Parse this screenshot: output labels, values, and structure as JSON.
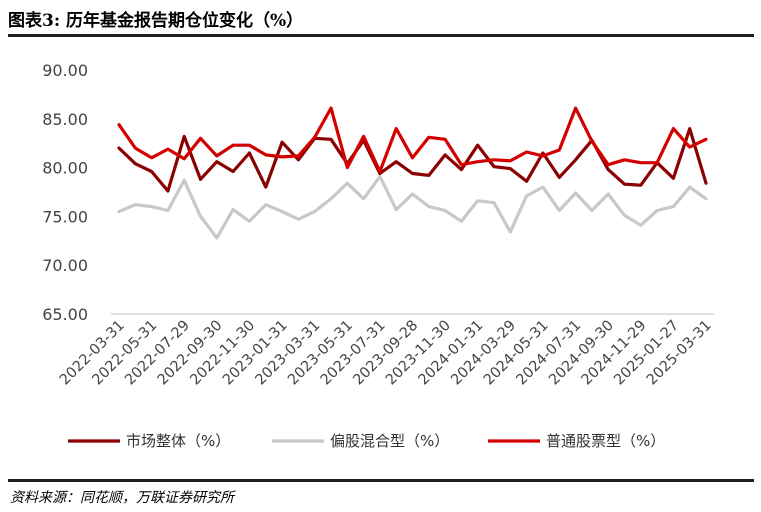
{
  "header": {
    "title": "图表3:  历年基金报告期仓位变化（%）"
  },
  "footer": {
    "source": "资料来源：同花顺，万联证券研究所"
  },
  "chart_data": {
    "type": "line",
    "title": "",
    "xlabel": "",
    "ylabel": "",
    "ylim": [
      65,
      90
    ],
    "yticks": [
      "90.00",
      "85.00",
      "80.00",
      "75.00",
      "70.00",
      "65.00"
    ],
    "ytick_values": [
      90,
      85,
      80,
      75,
      70,
      65
    ],
    "grid": false,
    "legend_position": "bottom",
    "x": [
      "2022-03-31",
      "2022-04-30",
      "2022-05-31",
      "2022-06-30",
      "2022-07-29",
      "2022-08-31",
      "2022-09-30",
      "2022-10-31",
      "2022-11-30",
      "2022-12-30",
      "2023-01-31",
      "2023-02-28",
      "2023-03-31",
      "2023-04-28",
      "2023-05-31",
      "2023-06-30",
      "2023-07-31",
      "2023-08-31",
      "2023-09-28",
      "2023-10-31",
      "2023-11-30",
      "2023-12-29",
      "2024-01-31",
      "2024-02-29",
      "2024-03-29",
      "2024-04-30",
      "2024-05-31",
      "2024-06-28",
      "2024-07-31",
      "2024-08-30",
      "2024-09-30",
      "2024-10-31",
      "2024-11-29",
      "2024-12-31",
      "2025-01-27",
      "2025-02-28",
      "2025-03-31"
    ],
    "x_tick_labels": [
      "2022-03-31",
      "2022-05-31",
      "2022-07-29",
      "2022-09-30",
      "2022-11-30",
      "2023-01-31",
      "2023-03-31",
      "2023-05-31",
      "2023-07-31",
      "2023-09-28",
      "2023-11-30",
      "2024-01-31",
      "2024-03-29",
      "2024-05-31",
      "2024-07-31",
      "2024-09-30",
      "2024-11-29",
      "2025-01-27",
      "2025-03-31"
    ],
    "series": [
      {
        "name": "市场整体（%）",
        "color": "#8b0000",
        "values": [
          82.0,
          80.4,
          79.6,
          77.6,
          83.2,
          78.8,
          80.6,
          79.6,
          81.5,
          78.0,
          82.6,
          80.8,
          83.0,
          82.9,
          80.4,
          82.8,
          79.4,
          80.6,
          79.4,
          79.2,
          81.3,
          79.8,
          82.3,
          80.1,
          79.9,
          78.6,
          81.5,
          79.0,
          80.8,
          82.8,
          79.8,
          78.3,
          78.2,
          80.5,
          78.9,
          84.0,
          78.4
        ]
      },
      {
        "name": "偏股混合型（%）",
        "color": "#c8c8c8",
        "values": [
          75.5,
          76.2,
          76.0,
          75.6,
          78.7,
          75.0,
          72.8,
          75.7,
          74.5,
          76.2,
          75.5,
          74.7,
          75.5,
          76.8,
          78.4,
          76.8,
          79.1,
          75.7,
          77.3,
          76.0,
          75.6,
          74.5,
          76.6,
          76.4,
          73.4,
          77.1,
          78.0,
          75.6,
          77.4,
          75.6,
          77.3,
          75.1,
          74.1,
          75.6,
          76.0,
          78.0,
          76.8
        ]
      },
      {
        "name": "普通股票型（%）",
        "color": "#d40000",
        "values": [
          84.4,
          82.0,
          81.0,
          81.9,
          80.9,
          83.0,
          81.2,
          82.3,
          82.3,
          81.3,
          81.1,
          81.2,
          83.1,
          86.1,
          80.0,
          83.2,
          79.6,
          84.0,
          81.0,
          83.1,
          82.9,
          80.3,
          80.6,
          80.8,
          80.7,
          81.6,
          81.2,
          81.8,
          86.1,
          82.7,
          80.3,
          80.8,
          80.5,
          80.5,
          84.0,
          82.1,
          82.9
        ]
      }
    ]
  }
}
